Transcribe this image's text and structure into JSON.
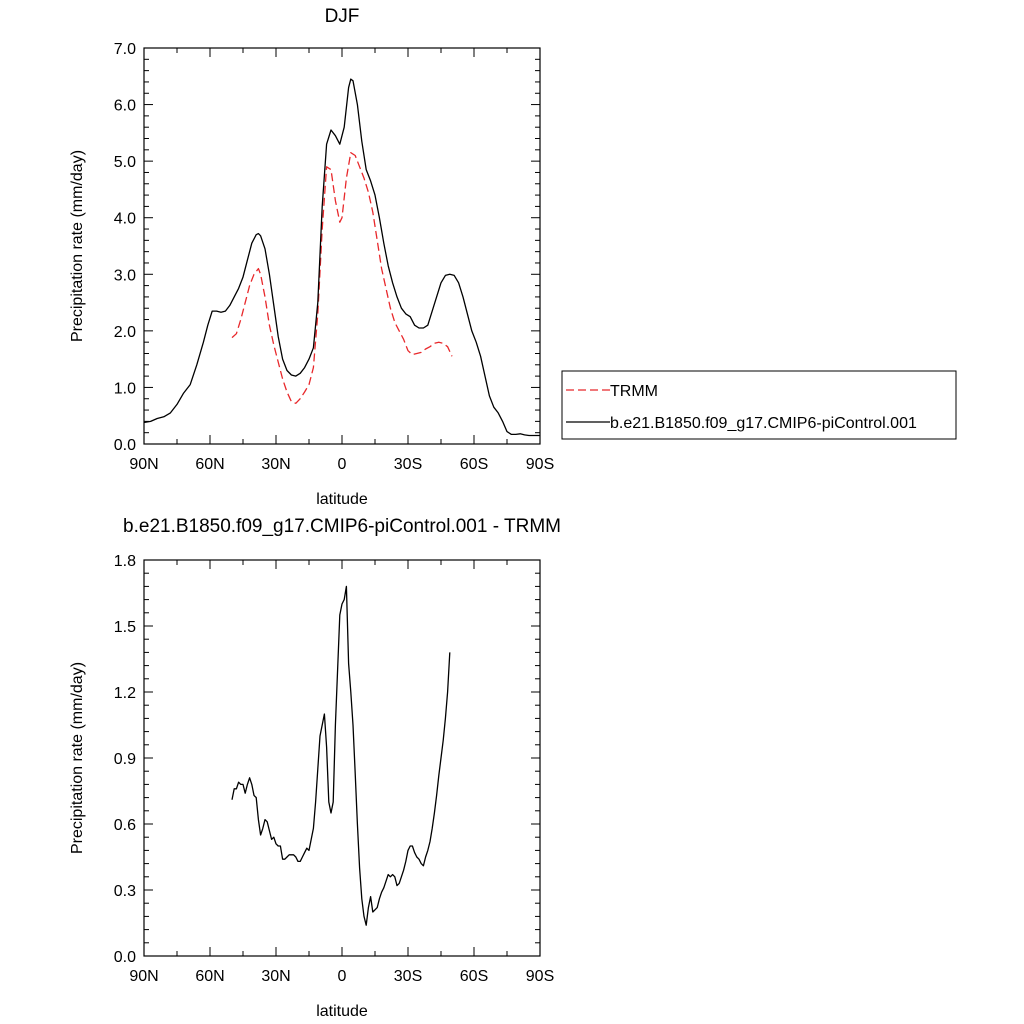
{
  "chart_data": [
    {
      "type": "line",
      "title": "DJF",
      "xlabel": "latitude",
      "ylabel": "Precipitation rate (mm/day)",
      "xlim": [
        -90,
        90
      ],
      "ylim": [
        0,
        7
      ],
      "x_ticks": [
        -90,
        -60,
        -30,
        0,
        30,
        60,
        90
      ],
      "x_tick_labels": [
        "90N",
        "60N",
        "30N",
        "0",
        "30S",
        "60S",
        "90S"
      ],
      "y_ticks": [
        0,
        1,
        2,
        3,
        4,
        5,
        6,
        7
      ],
      "y_tick_labels": [
        "0.0",
        "1.0",
        "2.0",
        "3.0",
        "4.0",
        "5.0",
        "6.0",
        "7.0"
      ],
      "legend_position": "right",
      "series": [
        {
          "name": "TRMM",
          "color": "#e8282b",
          "dash": "dashed",
          "x": [
            -50,
            -48,
            -46,
            -44,
            -42,
            -40,
            -38,
            -37,
            -35,
            -33,
            -31,
            -29,
            -27,
            -25,
            -23,
            -21,
            -19,
            -17,
            -15,
            -13,
            -11,
            -9,
            -7,
            -5,
            -3,
            -1,
            0,
            2,
            4,
            6,
            8,
            10,
            12,
            14,
            16,
            18,
            20,
            22,
            24,
            26,
            28,
            30,
            32,
            34,
            36,
            38,
            40,
            42,
            44,
            46,
            48,
            50
          ],
          "y": [
            1.88,
            1.95,
            2.2,
            2.5,
            2.8,
            3.0,
            3.1,
            3.0,
            2.6,
            2.1,
            1.75,
            1.45,
            1.15,
            0.92,
            0.75,
            0.72,
            0.8,
            0.92,
            1.05,
            1.35,
            2.3,
            3.8,
            4.9,
            4.85,
            4.3,
            3.92,
            4.0,
            4.7,
            5.15,
            5.1,
            4.9,
            4.7,
            4.45,
            4.1,
            3.6,
            3.1,
            2.75,
            2.4,
            2.15,
            2.0,
            1.85,
            1.65,
            1.58,
            1.6,
            1.62,
            1.68,
            1.72,
            1.78,
            1.8,
            1.78,
            1.72,
            1.55
          ]
        },
        {
          "name": "b.e21.B1850.f09_g17.CMIP6-piControl.001",
          "color": "#000000",
          "dash": "solid",
          "x": [
            -90,
            -87,
            -84,
            -81,
            -78,
            -75,
            -72,
            -69,
            -66,
            -63,
            -61,
            -59,
            -57,
            -55,
            -53,
            -51,
            -49,
            -47,
            -45,
            -43,
            -41,
            -39,
            -38,
            -37,
            -35,
            -33,
            -31,
            -29,
            -27,
            -25,
            -23,
            -21,
            -19,
            -17,
            -15,
            -13,
            -11,
            -9,
            -7,
            -5,
            -3,
            -1,
            1,
            3,
            4,
            5,
            7,
            9,
            11,
            13,
            15,
            17,
            19,
            21,
            23,
            25,
            27,
            29,
            31,
            33,
            35,
            37,
            39,
            41,
            43,
            45,
            47,
            49,
            51,
            53,
            55,
            57,
            59,
            61,
            63,
            65,
            67,
            69,
            71,
            73,
            75,
            77,
            79,
            81,
            83,
            85,
            87,
            90
          ],
          "y": [
            0.38,
            0.4,
            0.45,
            0.48,
            0.55,
            0.7,
            0.9,
            1.05,
            1.4,
            1.8,
            2.1,
            2.35,
            2.35,
            2.33,
            2.35,
            2.45,
            2.6,
            2.75,
            2.95,
            3.25,
            3.55,
            3.7,
            3.72,
            3.68,
            3.45,
            3.0,
            2.45,
            1.9,
            1.5,
            1.3,
            1.22,
            1.2,
            1.25,
            1.35,
            1.5,
            1.7,
            2.5,
            4.2,
            5.3,
            5.55,
            5.45,
            5.3,
            5.6,
            6.3,
            6.45,
            6.42,
            6.0,
            5.35,
            4.85,
            4.65,
            4.4,
            4.0,
            3.55,
            3.15,
            2.85,
            2.6,
            2.4,
            2.3,
            2.25,
            2.1,
            2.05,
            2.05,
            2.1,
            2.35,
            2.6,
            2.85,
            2.98,
            3.0,
            2.98,
            2.85,
            2.6,
            2.3,
            2.0,
            1.8,
            1.55,
            1.2,
            0.85,
            0.65,
            0.55,
            0.4,
            0.22,
            0.17,
            0.17,
            0.18,
            0.16,
            0.15,
            0.15,
            0.15
          ]
        }
      ]
    },
    {
      "type": "line",
      "title": "b.e21.B1850.f09_g17.CMIP6-piControl.001 - TRMM",
      "xlabel": "latitude",
      "ylabel": "Precipitation rate (mm/day)",
      "xlim": [
        -90,
        90
      ],
      "ylim": [
        0,
        1.8
      ],
      "x_ticks": [
        -90,
        -60,
        -30,
        0,
        30,
        60,
        90
      ],
      "x_tick_labels": [
        "90N",
        "60N",
        "30N",
        "0",
        "30S",
        "60S",
        "90S"
      ],
      "y_ticks": [
        0,
        0.3,
        0.6,
        0.9,
        1.2,
        1.5,
        1.8
      ],
      "y_tick_labels": [
        "0.0",
        "0.3",
        "0.6",
        "0.9",
        "1.2",
        "1.5",
        "1.8"
      ],
      "series": [
        {
          "color": "#000000",
          "dash": "solid",
          "x": [
            -50,
            -49,
            -48,
            -47,
            -46,
            -45,
            -44,
            -43,
            -42,
            -41,
            -40,
            -39,
            -38,
            -37,
            -36,
            -35,
            -34,
            -33,
            -32,
            -31,
            -30,
            -29,
            -28,
            -27,
            -26,
            -25,
            -24,
            -23,
            -22,
            -21,
            -20,
            -19,
            -18,
            -17,
            -16,
            -15,
            -14,
            -13,
            -12,
            -11,
            -10,
            -9,
            -8,
            -7,
            -6,
            -5,
            -4,
            -3,
            -2,
            -1,
            0,
            1,
            2,
            3,
            4,
            5,
            6,
            7,
            8,
            9,
            10,
            11,
            12,
            13,
            14,
            15,
            16,
            17,
            18,
            19,
            20,
            21,
            22,
            23,
            24,
            25,
            26,
            27,
            28,
            29,
            30,
            31,
            32,
            33,
            34,
            35,
            36,
            37,
            38,
            39,
            40,
            41,
            42,
            43,
            44,
            45,
            46,
            47,
            48,
            49
          ],
          "y": [
            0.71,
            0.76,
            0.76,
            0.79,
            0.78,
            0.78,
            0.74,
            0.78,
            0.81,
            0.78,
            0.73,
            0.72,
            0.62,
            0.55,
            0.58,
            0.62,
            0.61,
            0.57,
            0.53,
            0.54,
            0.51,
            0.5,
            0.5,
            0.44,
            0.44,
            0.45,
            0.46,
            0.46,
            0.46,
            0.45,
            0.43,
            0.43,
            0.45,
            0.47,
            0.49,
            0.48,
            0.53,
            0.58,
            0.7,
            0.85,
            1.0,
            1.05,
            1.1,
            0.95,
            0.7,
            0.65,
            0.7,
            1.05,
            1.3,
            1.55,
            1.6,
            1.62,
            1.68,
            1.33,
            1.2,
            1.05,
            0.83,
            0.6,
            0.4,
            0.26,
            0.18,
            0.14,
            0.22,
            0.27,
            0.2,
            0.21,
            0.22,
            0.26,
            0.29,
            0.31,
            0.34,
            0.37,
            0.36,
            0.37,
            0.36,
            0.32,
            0.33,
            0.36,
            0.39,
            0.43,
            0.48,
            0.5,
            0.5,
            0.47,
            0.45,
            0.44,
            0.42,
            0.41,
            0.45,
            0.48,
            0.52,
            0.58,
            0.65,
            0.73,
            0.82,
            0.9,
            0.98,
            1.08,
            1.2,
            1.38
          ]
        }
      ]
    }
  ]
}
